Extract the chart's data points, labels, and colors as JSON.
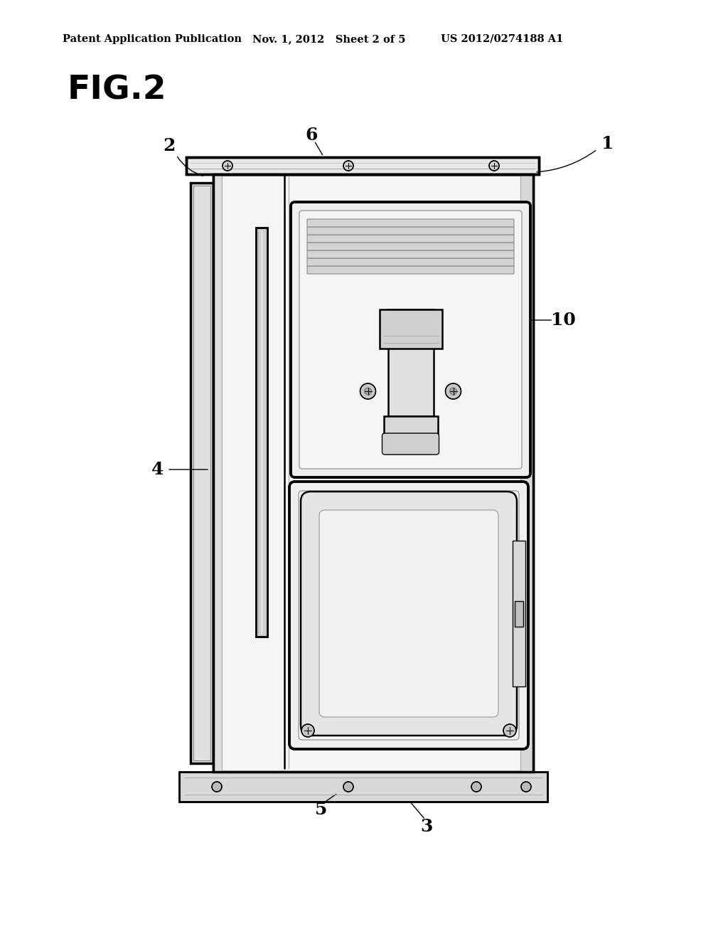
{
  "title_line1": "Patent Application Publication",
  "title_line2": "Nov. 1, 2012   Sheet 2 of 5",
  "title_line3": "US 2012/0274188 A1",
  "fig_label": "FIG.2",
  "bg_color": "#ffffff",
  "line_color": "#000000",
  "gray_light": "#cccccc",
  "gray_mid": "#999999",
  "gray_dark": "#555555"
}
